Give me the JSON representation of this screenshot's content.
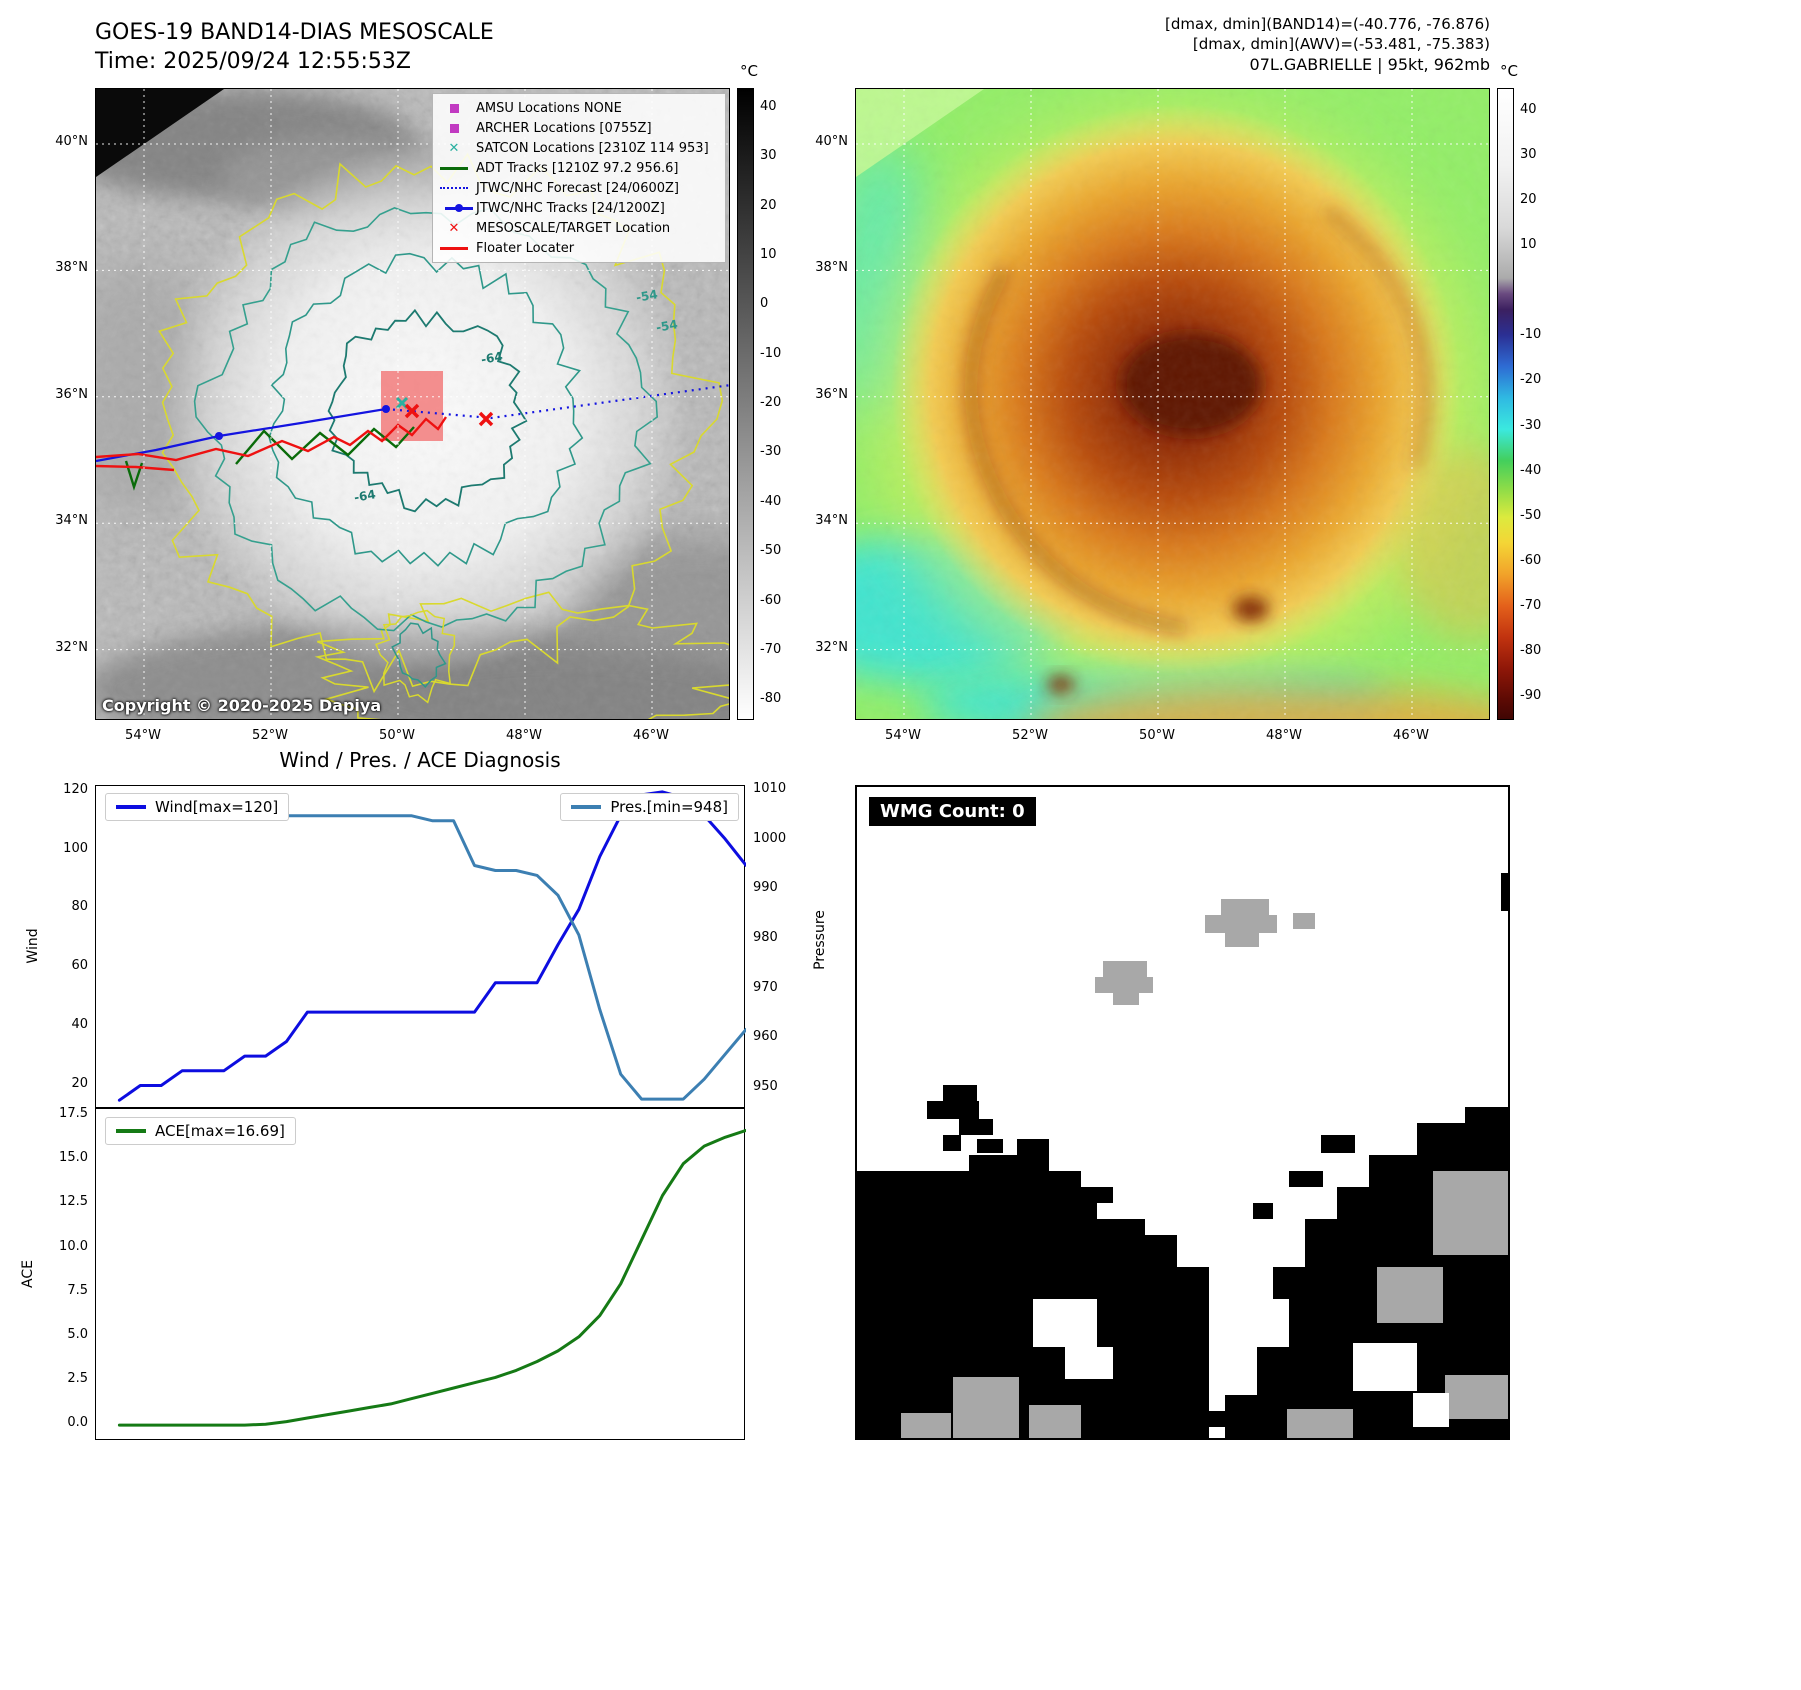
{
  "band14": {
    "title": "GOES-19 BAND14-DIAS MESOSCALE",
    "time": "Time: 2025/09/24 12:55:53Z",
    "copyright": "Copyright © 2020-2025 Dapiya",
    "colorbar": {
      "unit": "°C",
      "ticks": [
        40,
        30,
        20,
        10,
        0,
        -10,
        -20,
        -30,
        -40,
        -50,
        -60,
        -70,
        -80
      ]
    },
    "lat_ticks": [
      "40°N",
      "38°N",
      "36°N",
      "34°N",
      "32°N"
    ],
    "lon_ticks": [
      "54°W",
      "52°W",
      "50°W",
      "48°W",
      "46°W"
    ],
    "legend": [
      {
        "label": "AMSU Locations NONE",
        "marker": "square",
        "color": "#c13ac1"
      },
      {
        "label": "ARCHER Locations [0755Z]",
        "marker": "square",
        "color": "#c13ac1"
      },
      {
        "label": "SATCON Locations [2310Z 114 953]",
        "marker": "x",
        "color": "#2ab0a0"
      },
      {
        "label": "ADT Tracks [1210Z 97.2 956.6]",
        "marker": "line",
        "color": "#0a6b0a"
      },
      {
        "label": "JTWC/NHC Forecast [24/0600Z]",
        "marker": "dotted",
        "color": "#1414e0"
      },
      {
        "label": "JTWC/NHC Tracks [24/1200Z]",
        "marker": "line-dot",
        "color": "#1414e0"
      },
      {
        "label": "MESOSCALE/TARGET Location",
        "marker": "x",
        "color": "#ee1111"
      },
      {
        "label": "Floater Locater",
        "marker": "line",
        "color": "#ee1111"
      }
    ],
    "contour_labels": [
      "-54",
      "-54",
      "-64",
      "-64"
    ]
  },
  "awv": {
    "header": [
      "[dmax, dmin](BAND14)=(-40.776, -76.876)",
      "[dmax, dmin](AWV)=(-53.481, -75.383)",
      "07L.GABRIELLE | 95kt, 962mb"
    ],
    "colorbar": {
      "unit": "°C",
      "ticks": [
        40,
        30,
        20,
        10,
        -10,
        -20,
        -30,
        -40,
        -50,
        -60,
        -70,
        -80,
        -90
      ]
    },
    "lat_ticks": [
      "40°N",
      "38°N",
      "36°N",
      "34°N",
      "32°N"
    ],
    "lon_ticks": [
      "54°W",
      "52°W",
      "50°W",
      "48°W",
      "46°W"
    ]
  },
  "wmg": {
    "count_label": "WMG Count: 0"
  },
  "chart_data": [
    {
      "type": "line",
      "title": "Wind / Pres. / ACE Diagnosis",
      "ylabel_left": "Wind",
      "ylabel_right": "Pressure",
      "ylim_left": [
        12,
        122
      ],
      "ylim_right": [
        946,
        1011
      ],
      "yticks_left": [
        20,
        40,
        60,
        80,
        100,
        120
      ],
      "yticks_right": [
        950,
        960,
        970,
        980,
        990,
        1000,
        1010
      ],
      "legend_position": "upper-left / upper-right",
      "grid": false,
      "x": [
        0,
        1,
        2,
        3,
        4,
        5,
        6,
        7,
        8,
        9,
        10,
        11,
        12,
        13,
        14,
        15,
        16,
        17,
        18,
        19,
        20,
        21,
        22,
        23,
        24,
        25,
        26,
        27,
        28,
        29,
        30
      ],
      "series": [
        {
          "name": "Wind[max=120]",
          "axis": "left",
          "color": "#0d0de0",
          "values": [
            15,
            20,
            20,
            25,
            25,
            25,
            30,
            30,
            35,
            45,
            45,
            45,
            45,
            45,
            45,
            45,
            45,
            45,
            55,
            55,
            55,
            68,
            80,
            98,
            112,
            119,
            120,
            118,
            112,
            104,
            95
          ]
        },
        {
          "name": "Pres.[min=948]",
          "axis": "right",
          "color": "#3c7fb2",
          "values": [
            1009,
            1009,
            1008,
            1008,
            1007,
            1007,
            1006,
            1006,
            1005,
            1005,
            1005,
            1005,
            1005,
            1005,
            1005,
            1004,
            1004,
            995,
            994,
            994,
            993,
            989,
            981,
            966,
            953,
            948,
            948,
            948,
            952,
            957,
            962
          ]
        }
      ]
    },
    {
      "type": "line",
      "ylabel": "ACE",
      "ylim": [
        -0.9,
        17.9
      ],
      "yticks": [
        "0.0",
        "2.5",
        "5.0",
        "7.5",
        "10.0",
        "12.5",
        "15.0",
        "17.5"
      ],
      "grid": false,
      "x": [
        0,
        1,
        2,
        3,
        4,
        5,
        6,
        7,
        8,
        9,
        10,
        11,
        12,
        13,
        14,
        15,
        16,
        17,
        18,
        19,
        20,
        21,
        22,
        23,
        24,
        25,
        26,
        27,
        28,
        29,
        30
      ],
      "series": [
        {
          "name": "ACE[max=16.69]",
          "color": "#157a15",
          "values": [
            0,
            0,
            0,
            0,
            0,
            0,
            0,
            0.05,
            0.2,
            0.4,
            0.6,
            0.8,
            1.0,
            1.2,
            1.5,
            1.8,
            2.1,
            2.4,
            2.7,
            3.1,
            3.6,
            4.2,
            5.0,
            6.2,
            8.0,
            10.5,
            13.0,
            14.8,
            15.8,
            16.3,
            16.69
          ]
        }
      ]
    }
  ]
}
